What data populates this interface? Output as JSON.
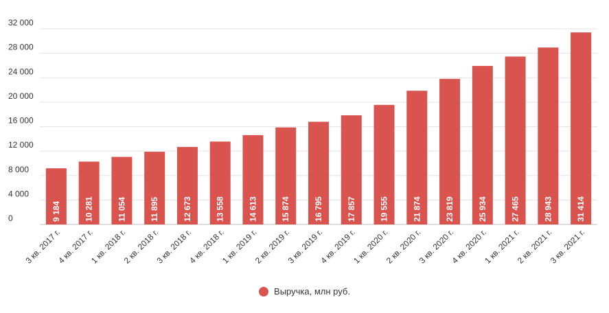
{
  "chart_data": {
    "type": "bar",
    "categories": [
      "3 кв. 2017 г.",
      "4 кв. 2017 г.",
      "1 кв. 2018 г.",
      "2 кв. 2018 г.",
      "3 кв. 2018 г.",
      "4 кв. 2018 г.",
      "1 кв. 2019 г.",
      "2 кв. 2019 г.",
      "3 кв. 2019 г.",
      "4 кв. 2019 г.",
      "1 кв. 2020 г.",
      "2 кв. 2020 г.",
      "3 кв. 2020 г.",
      "4 кв. 2020 г.",
      "1 кв. 2021 г.",
      "2 кв. 2021 г.",
      "3 кв. 2021 г."
    ],
    "series": [
      {
        "name": "Выручка, млн руб.",
        "values": [
          9184,
          10281,
          11054,
          11895,
          12673,
          13558,
          14613,
          15874,
          16795,
          17857,
          19555,
          21874,
          23819,
          25934,
          27465,
          28943,
          31414
        ],
        "labels": [
          "9 184",
          "10 281",
          "11 054",
          "11 895",
          "12 673",
          "13 558",
          "14 613",
          "15 874",
          "16 795",
          "17 857",
          "19 555",
          "21 874",
          "23 819",
          "25 934",
          "27 465",
          "28 943",
          "31 414"
        ],
        "color": "#d9534f"
      }
    ],
    "yticks": [
      0,
      4000,
      8000,
      12000,
      16000,
      20000,
      24000,
      28000,
      32000
    ],
    "ytick_labels": [
      "0",
      "4 000",
      "8 000",
      "12 000",
      "16 000",
      "20 000",
      "24 000",
      "28 000",
      "32 000"
    ],
    "ylim": [
      0,
      32000
    ],
    "grid": true,
    "legend_position": "bottom"
  }
}
